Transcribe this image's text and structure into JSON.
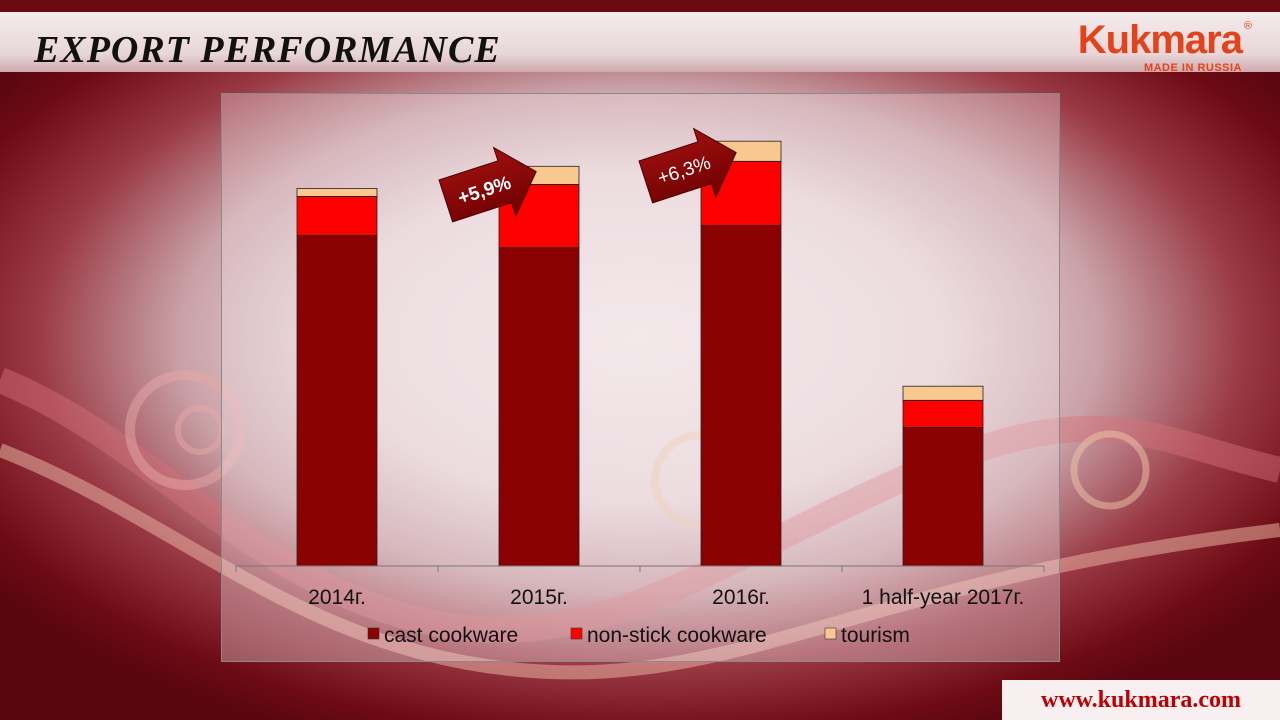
{
  "slide": {
    "title": "EXPORT  PERFORMANCE",
    "logo": {
      "wordmark": "Kukmara",
      "registered": "®",
      "tagline": "MADE IN RUSSIA"
    },
    "footer_url": "www.kukmara.com"
  },
  "colors": {
    "cast_cookware": "#8b0000",
    "non_stick_cookware": "#ff0000",
    "tourism": "#f8c890",
    "title_bar_border": "#6a0911",
    "brand": "#e4421a"
  },
  "chart_data": {
    "type": "bar",
    "stacked": true,
    "categories": [
      "2014г.",
      "2015г.",
      "2016г.",
      "1 half-year 2017г."
    ],
    "series": [
      {
        "name": "cast cookware",
        "values": [
          329,
          317,
          339,
          138
        ]
      },
      {
        "name": "non-stick cookware",
        "values": [
          39,
          63,
          64,
          27
        ]
      },
      {
        "name": "tourism",
        "values": [
          8,
          18,
          20,
          14
        ]
      }
    ],
    "ylim": [
      0,
      470
    ],
    "annotations": [
      {
        "text": "+5,9%",
        "between": [
          "2014г.",
          "2015г."
        ]
      },
      {
        "text": "+6,3%",
        "between": [
          "2015г.",
          "2016г."
        ]
      }
    ],
    "legend": "bottom",
    "grid": false,
    "xlabel": "",
    "ylabel": ""
  }
}
